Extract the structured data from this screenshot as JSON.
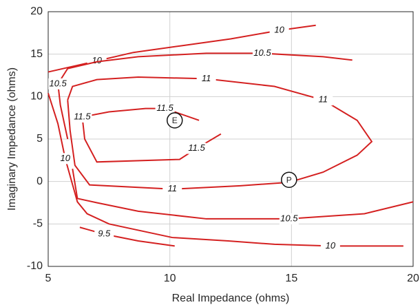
{
  "chart_data": {
    "type": "contour",
    "xlabel": "Real Impedance (ohms)",
    "ylabel": "Imaginary Impedance (ohms)",
    "xlim": [
      5,
      20
    ],
    "ylim": [
      -10,
      20
    ],
    "xticks": [
      5,
      10,
      15,
      20
    ],
    "yticks": [
      -10,
      -5,
      0,
      5,
      10,
      15,
      20
    ],
    "grid": true,
    "color": "#d42020",
    "contours": [
      {
        "level": 10,
        "x": [
          5,
          7,
          8.5,
          10.5,
          12.5,
          14.5,
          16
        ],
        "y": [
          12.9,
          14.2,
          15.2,
          16,
          16.8,
          17.8,
          18.4
        ]
      },
      {
        "level": 10.5,
        "x": [
          17.5,
          16.3,
          13.8,
          11.5,
          8.7,
          7,
          5.8,
          5.4,
          5.5,
          5.8
        ],
        "y": [
          14.3,
          14.7,
          15.1,
          15.1,
          14.7,
          14.1,
          13.3,
          11.5,
          9,
          5
        ]
      },
      {
        "level": 10.5,
        "x": [
          6,
          6.2,
          7,
          8.7,
          11.5,
          14.9,
          18,
          20
        ],
        "y": [
          1.5,
          -2.0,
          -2.5,
          -3.5,
          -4.4,
          -4.4,
          -3.8,
          -2.4
        ]
      },
      {
        "level": 10,
        "x": [
          5,
          5.4,
          5.7,
          6.2,
          6.6,
          7.5,
          10.1,
          12.4,
          14.3,
          16.6,
          19.6
        ],
        "y": [
          10.4,
          6.8,
          2.7,
          -2.4,
          -3.8,
          -5,
          -6.6,
          -7,
          -7.4,
          -7.6,
          -7.6
        ]
      },
      {
        "level": 9.5,
        "x": [
          6.3,
          7.3,
          8.7,
          10.2
        ],
        "y": [
          -5.4,
          -6.2,
          -7,
          -7.6
        ]
      },
      {
        "level": 11,
        "x": [
          5.8,
          5.9,
          6.1,
          6.7,
          10.1,
          12.9,
          14.9,
          16.3,
          17.7,
          18.3,
          17.7,
          16.3,
          14.3,
          11.5,
          8.7,
          7,
          6,
          5.8
        ],
        "y": [
          9.6,
          6,
          1.9,
          -0.4,
          -0.9,
          -0.5,
          -0.1,
          1.1,
          3.1,
          4.7,
          7.2,
          9.6,
          11.2,
          12.1,
          12.3,
          12,
          11.2,
          9.6
        ]
      },
      {
        "level": 11.5,
        "x": [
          12.1,
          11.1,
          10.4,
          7,
          6.5,
          6.4,
          7.5,
          9,
          9.8,
          11.2
        ],
        "y": [
          5.6,
          3.9,
          2.6,
          2.3,
          5,
          7.6,
          8.2,
          8.6,
          8.6,
          7.2
        ]
      }
    ],
    "points": [
      {
        "label": "E",
        "x": 10.2,
        "y": 7.2
      },
      {
        "label": "P",
        "x": 14.9,
        "y": 0.2
      }
    ]
  }
}
